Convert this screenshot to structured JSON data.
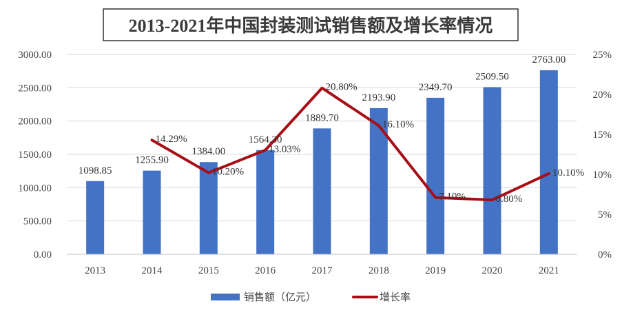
{
  "colors": {
    "bar": "#4472C4",
    "line": "#A50F15"
  },
  "chart_data": {
    "type": "bar",
    "title": "2013-2021年中国封装测试销售额及增长率情况",
    "categories": [
      "2013",
      "2014",
      "2015",
      "2016",
      "2017",
      "2018",
      "2019",
      "2020",
      "2021"
    ],
    "series": [
      {
        "name": "销售额（亿元）",
        "type": "bar",
        "axis": "left",
        "values": [
          1098.85,
          1255.9,
          1384.0,
          1564.3,
          1889.7,
          2193.9,
          2349.7,
          2509.5,
          2763.0
        ],
        "labels": [
          "1098.85",
          "1255.90",
          "1384.00",
          "1564.30",
          "1889.70",
          "2193.90",
          "2349.70",
          "2509.50",
          "2763.00"
        ]
      },
      {
        "name": "增长率",
        "type": "line",
        "axis": "right",
        "values": [
          null,
          14.29,
          10.2,
          13.03,
          20.8,
          16.1,
          7.1,
          6.8,
          10.1
        ],
        "labels": [
          "",
          "14.29%",
          "10.20%",
          "13.03%",
          "20.80%",
          "16.10%",
          "7.10%",
          "6.80%",
          "10.10%"
        ]
      }
    ],
    "y_left": {
      "ylim": [
        0,
        3000
      ],
      "ticks": [
        0,
        500,
        1000,
        1500,
        2000,
        2500,
        3000
      ],
      "tick_labels": [
        "0.00",
        "500.00",
        "1000.00",
        "1500.00",
        "2000.00",
        "2500.00",
        "3000.00"
      ]
    },
    "y_right": {
      "ylim": [
        0,
        25
      ],
      "ticks": [
        0,
        5,
        10,
        15,
        20,
        25
      ],
      "tick_labels": [
        "0%",
        "5%",
        "10%",
        "15%",
        "20%",
        "25%"
      ]
    },
    "grid": true,
    "legend_position": "bottom"
  }
}
